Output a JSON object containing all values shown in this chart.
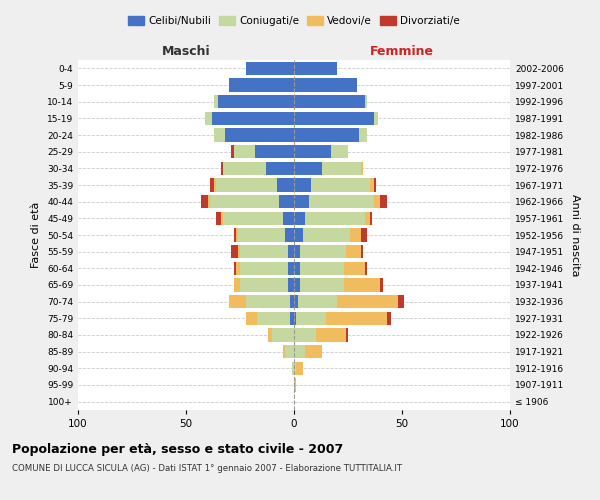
{
  "age_groups": [
    "100+",
    "95-99",
    "90-94",
    "85-89",
    "80-84",
    "75-79",
    "70-74",
    "65-69",
    "60-64",
    "55-59",
    "50-54",
    "45-49",
    "40-44",
    "35-39",
    "30-34",
    "25-29",
    "20-24",
    "15-19",
    "10-14",
    "5-9",
    "0-4"
  ],
  "birth_years": [
    "≤ 1906",
    "1907-1911",
    "1912-1916",
    "1917-1921",
    "1922-1926",
    "1927-1931",
    "1932-1936",
    "1937-1941",
    "1942-1946",
    "1947-1951",
    "1952-1956",
    "1957-1961",
    "1962-1966",
    "1967-1971",
    "1972-1976",
    "1977-1981",
    "1982-1986",
    "1987-1991",
    "1992-1996",
    "1997-2001",
    "2002-2006"
  ],
  "maschi": {
    "celibi": [
      0,
      0,
      0,
      0,
      0,
      2,
      2,
      3,
      3,
      3,
      4,
      5,
      7,
      8,
      13,
      18,
      32,
      38,
      35,
      30,
      22
    ],
    "coniugati": [
      0,
      0,
      1,
      4,
      10,
      15,
      20,
      22,
      22,
      22,
      22,
      28,
      32,
      28,
      20,
      10,
      5,
      3,
      2,
      0,
      0
    ],
    "vedovi": [
      0,
      0,
      0,
      1,
      2,
      5,
      8,
      3,
      2,
      1,
      1,
      1,
      1,
      1,
      0,
      0,
      0,
      0,
      0,
      0,
      0
    ],
    "divorziati": [
      0,
      0,
      0,
      0,
      0,
      0,
      0,
      0,
      1,
      3,
      1,
      2,
      3,
      2,
      1,
      1,
      0,
      0,
      0,
      0,
      0
    ]
  },
  "femmine": {
    "nubili": [
      0,
      0,
      0,
      0,
      0,
      1,
      2,
      3,
      3,
      3,
      4,
      5,
      7,
      8,
      13,
      17,
      30,
      37,
      33,
      29,
      20
    ],
    "coniugate": [
      0,
      0,
      1,
      5,
      10,
      14,
      18,
      20,
      20,
      21,
      22,
      28,
      30,
      27,
      18,
      8,
      4,
      2,
      1,
      0,
      0
    ],
    "vedove": [
      0,
      1,
      3,
      8,
      14,
      28,
      28,
      17,
      10,
      7,
      5,
      2,
      3,
      2,
      1,
      0,
      0,
      0,
      0,
      0,
      0
    ],
    "divorziate": [
      0,
      0,
      0,
      0,
      1,
      2,
      3,
      1,
      1,
      1,
      3,
      1,
      3,
      1,
      0,
      0,
      0,
      0,
      0,
      0,
      0
    ]
  },
  "colors": {
    "celibi": "#4472c4",
    "coniugati": "#c5d8a0",
    "vedovi": "#f0bc5e",
    "divorziati": "#c0392b"
  },
  "xlim": 100,
  "title": "Popolazione per età, sesso e stato civile - 2007",
  "subtitle": "COMUNE DI LUCCA SICULA (AG) - Dati ISTAT 1° gennaio 2007 - Elaborazione TUTTITALIA.IT",
  "ylabel_left": "Fasce di età",
  "ylabel_right": "Anni di nascita",
  "xlabel_maschi": "Maschi",
  "xlabel_femmine": "Femmine",
  "bg_color": "#efefef",
  "plot_bg": "#ffffff"
}
